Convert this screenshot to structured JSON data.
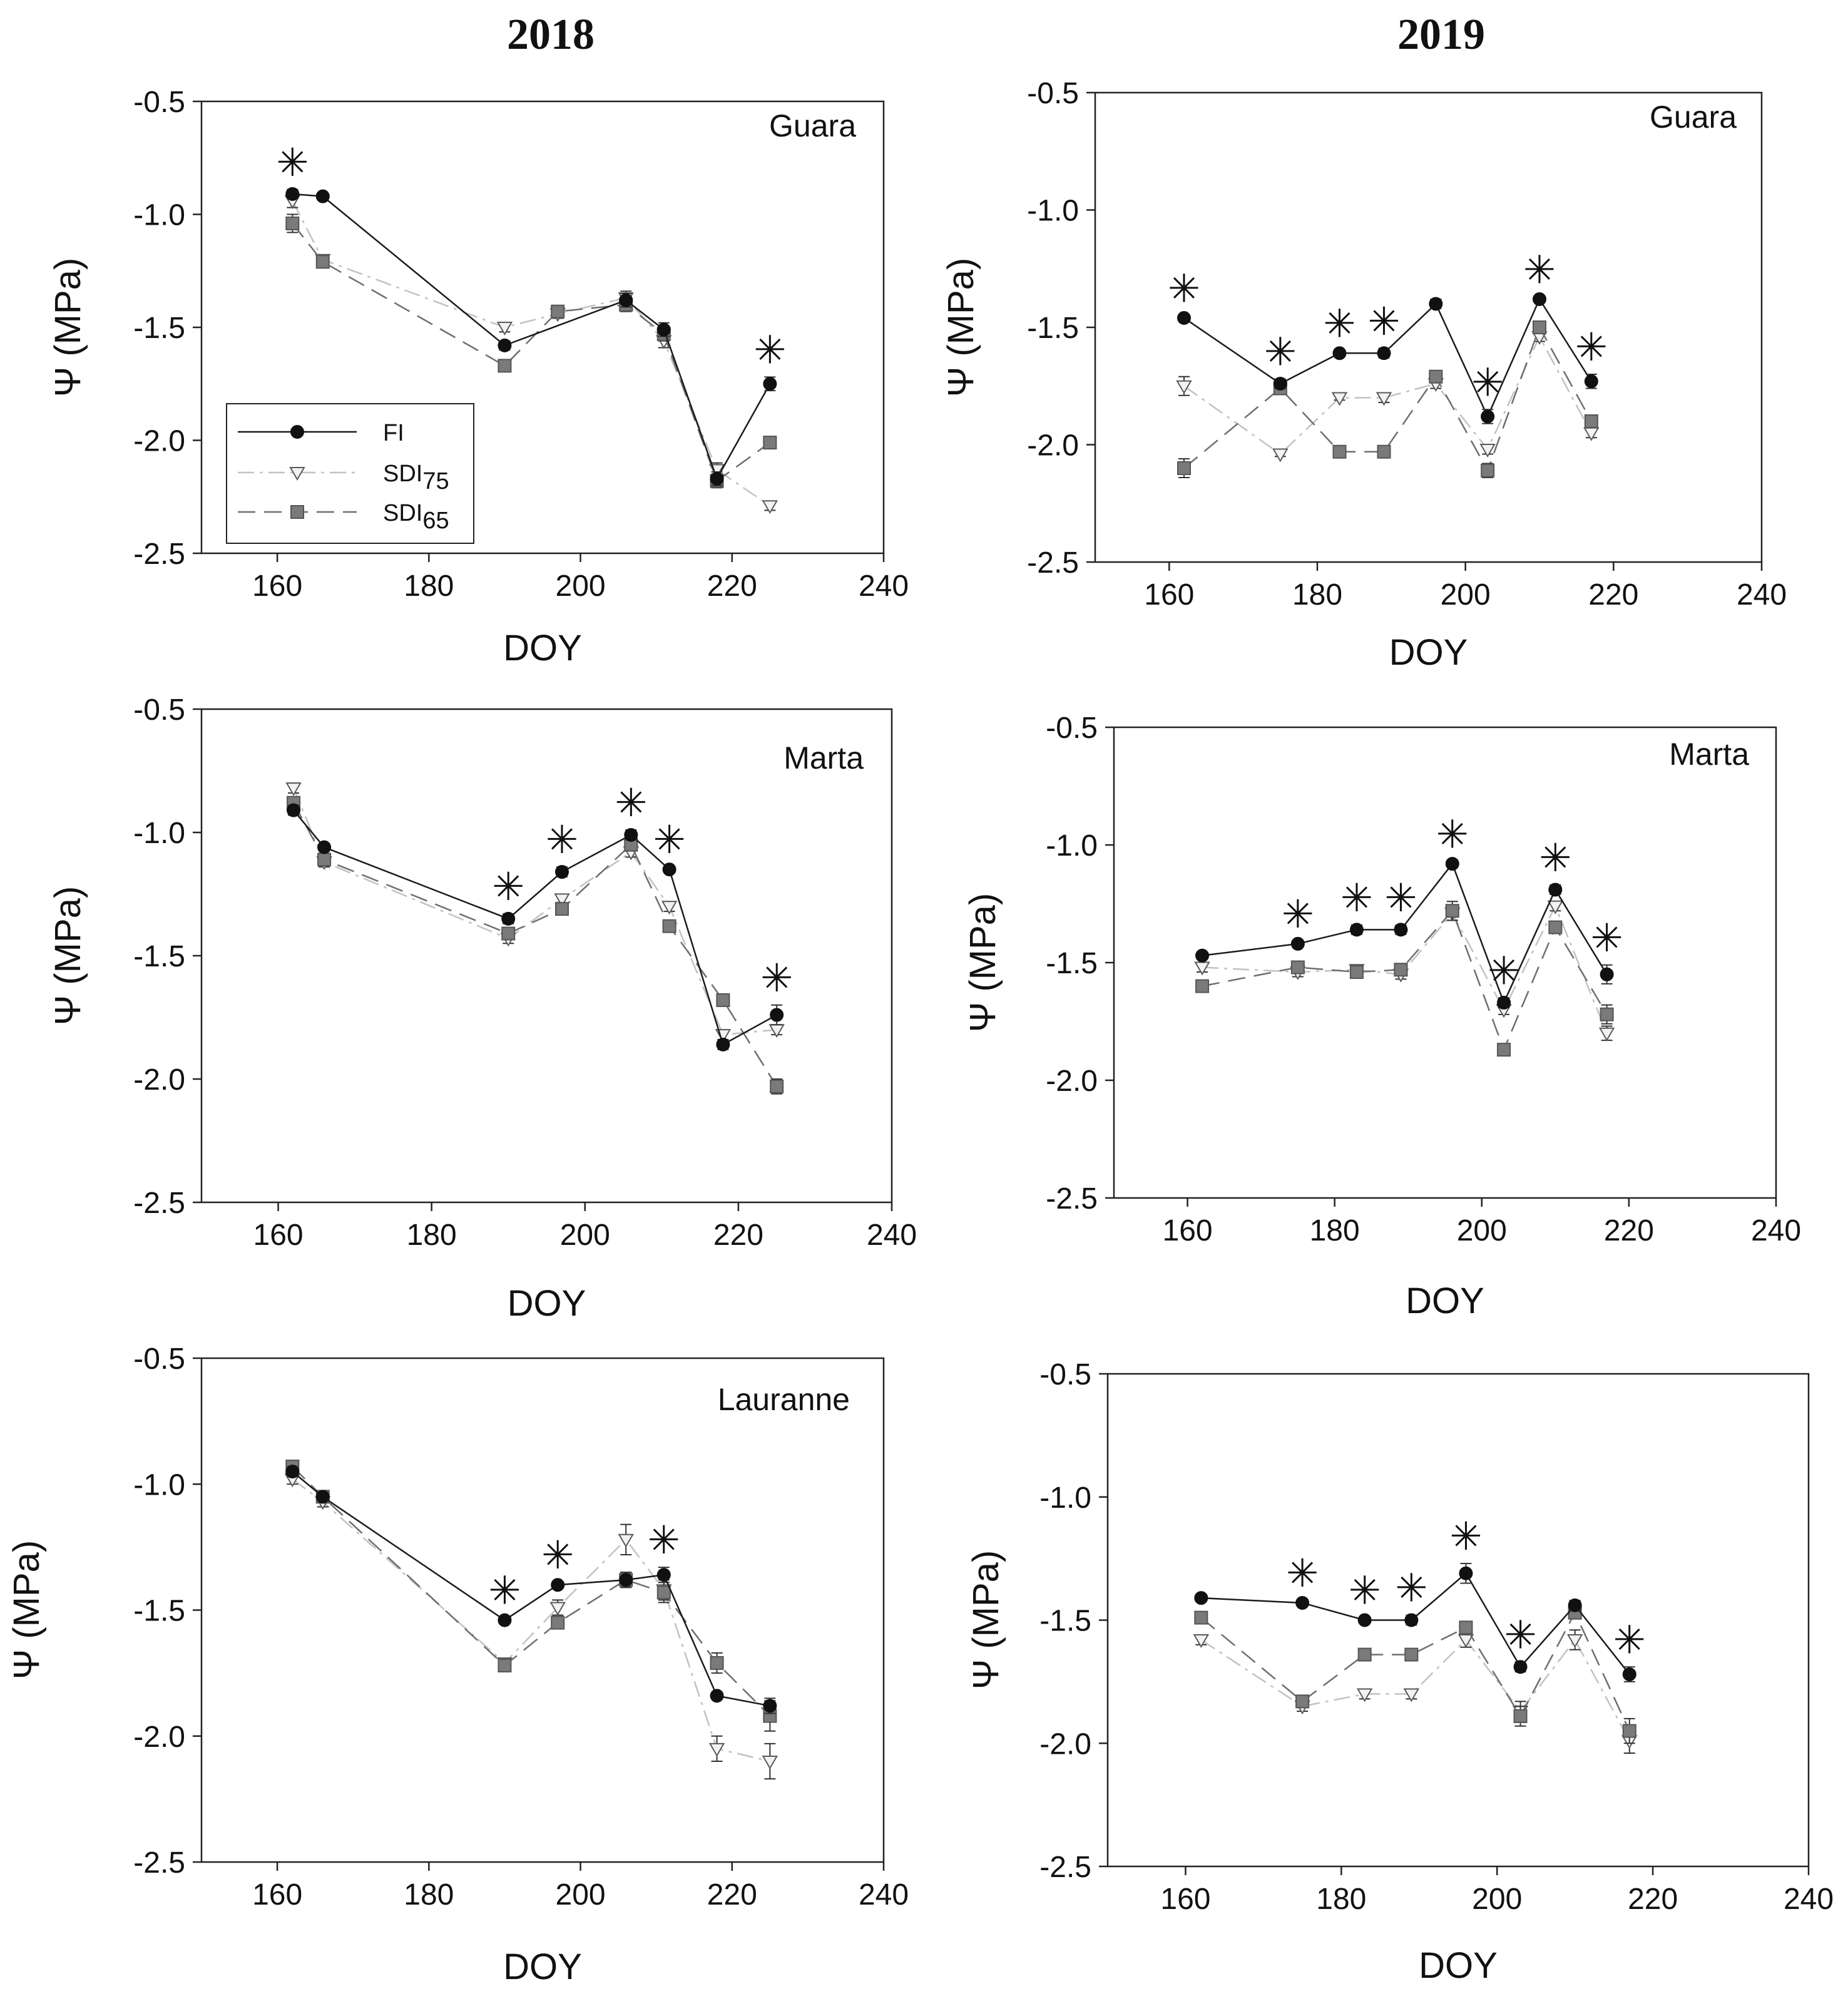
{
  "figure": {
    "col_titles": [
      "2018",
      "2019"
    ]
  },
  "legend": {
    "entries": [
      {
        "label": "FI",
        "series": "FI"
      },
      {
        "label": "SDI",
        "sub": "75",
        "series": "SDI75"
      },
      {
        "label": "SDI",
        "sub": "65",
        "series": "SDI65"
      }
    ]
  },
  "chart_data": [
    {
      "type": "line",
      "panel": "2018 Guara",
      "label": "Guara",
      "xlabel": "DOY",
      "ylabel": "Ψ (MPa)",
      "xlim": [
        150,
        240
      ],
      "ylim": [
        -2.5,
        -0.5
      ],
      "xticks": [
        "160",
        "180",
        "200",
        "220",
        "240"
      ],
      "yticks": [
        "-0.5",
        "-1.0",
        "-1.5",
        "-2.0",
        "-2.5"
      ],
      "series": [
        {
          "name": "FI",
          "x": [
            162,
            166,
            190,
            206,
            211,
            218,
            225
          ],
          "y": [
            -0.91,
            -0.92,
            -1.58,
            -1.38,
            -1.51,
            -2.17,
            -1.75
          ],
          "err": [
            0.02,
            0.01,
            0.02,
            0.03,
            0.03,
            0.03,
            0.03
          ]
        },
        {
          "name": "SDI75",
          "x": [
            162,
            166,
            190,
            197,
            206,
            211,
            218,
            225
          ],
          "y": [
            -0.94,
            -1.2,
            -1.5,
            -1.44,
            -1.37,
            -1.56,
            -2.13,
            -2.29
          ],
          "err": [
            0.03,
            0.01,
            0.02,
            0.02,
            0.03,
            0.03,
            0.03,
            0.02
          ]
        },
        {
          "name": "SDI65",
          "x": [
            162,
            166,
            190,
            197,
            206,
            211,
            218,
            225
          ],
          "y": [
            -1.04,
            -1.21,
            -1.67,
            -1.43,
            -1.4,
            -1.53,
            -2.18,
            -2.01
          ],
          "err": [
            0.04,
            0.01,
            0.02,
            0.02,
            0.03,
            0.03,
            0.03,
            0.01
          ]
        }
      ],
      "significance_doy": [
        162,
        225
      ]
    },
    {
      "type": "line",
      "panel": "2019 Guara",
      "label": "Guara",
      "xlabel": "DOY",
      "ylabel": "Ψ (MPa)",
      "xlim": [
        150,
        240
      ],
      "ylim": [
        -2.5,
        -0.5
      ],
      "xticks": [
        "160",
        "180",
        "200",
        "220",
        "240"
      ],
      "yticks": [
        "-0.5",
        "-1.0",
        "-1.5",
        "-2.0",
        "-2.5"
      ],
      "series": [
        {
          "name": "FI",
          "x": [
            162,
            175,
            183,
            189,
            196,
            203,
            210,
            217
          ],
          "y": [
            -1.46,
            -1.74,
            -1.61,
            -1.61,
            -1.4,
            -1.88,
            -1.38,
            -1.73
          ],
          "err": [
            0.01,
            0.02,
            0.01,
            0.02,
            0.02,
            0.03,
            0.01,
            0.03
          ]
        },
        {
          "name": "SDI75",
          "x": [
            162,
            175,
            183,
            189,
            196,
            203,
            210,
            217
          ],
          "y": [
            -1.75,
            -2.04,
            -1.8,
            -1.8,
            -1.74,
            -2.02,
            -1.54,
            -1.95
          ],
          "err": [
            0.04,
            0.01,
            0.01,
            0.02,
            0.02,
            0.02,
            0.02,
            0.02
          ]
        },
        {
          "name": "SDI65",
          "x": [
            162,
            175,
            183,
            189,
            196,
            203,
            210,
            217
          ],
          "y": [
            -2.1,
            -1.76,
            -2.03,
            -2.03,
            -1.71,
            -2.11,
            -1.5,
            -1.9
          ],
          "err": [
            0.04,
            0.01,
            0.01,
            0.01,
            0.02,
            0.03,
            0.02,
            0.02
          ]
        }
      ],
      "significance_doy": [
        162,
        175,
        183,
        189,
        203,
        210,
        217
      ]
    },
    {
      "type": "line",
      "panel": "2018 Marta",
      "label": "Marta",
      "xlabel": "DOY",
      "ylabel": "Ψ (MPa)",
      "xlim": [
        150,
        240
      ],
      "ylim": [
        -2.5,
        -0.5
      ],
      "xticks": [
        "160",
        "180",
        "200",
        "220",
        "240"
      ],
      "yticks": [
        "-0.5",
        "-1.0",
        "-1.5",
        "-2.0",
        "-2.5"
      ],
      "series": [
        {
          "name": "FI",
          "x": [
            162,
            166,
            190,
            197,
            206,
            211,
            218,
            225
          ],
          "y": [
            -0.91,
            -1.06,
            -1.35,
            -1.16,
            -1.01,
            -1.15,
            -1.86,
            -1.74
          ],
          "err": [
            0.02,
            0.01,
            0.02,
            0.02,
            0.02,
            0.01,
            0.02,
            0.04
          ]
        },
        {
          "name": "SDI75",
          "x": [
            162,
            166,
            190,
            197,
            206,
            211,
            218,
            225
          ],
          "y": [
            -0.82,
            -1.12,
            -1.43,
            -1.27,
            -1.08,
            -1.3,
            -1.82,
            -1.8
          ],
          "err": [
            0.02,
            0.02,
            0.02,
            0.02,
            0.02,
            0.02,
            0.02,
            0.02
          ]
        },
        {
          "name": "SDI65",
          "x": [
            162,
            166,
            190,
            197,
            206,
            211,
            218,
            225
          ],
          "y": [
            -0.88,
            -1.11,
            -1.41,
            -1.31,
            -1.05,
            -1.38,
            -1.68,
            -2.03
          ],
          "err": [
            0.02,
            0.02,
            0.02,
            0.02,
            0.02,
            0.01,
            0.02,
            0.03
          ]
        }
      ],
      "significance_doy": [
        190,
        197,
        206,
        211,
        225
      ]
    },
    {
      "type": "line",
      "panel": "2019 Marta",
      "label": "Marta",
      "xlabel": "DOY",
      "ylabel": "Ψ (MPa)",
      "xlim": [
        150,
        240
      ],
      "ylim": [
        -2.5,
        -0.5
      ],
      "xticks": [
        "160",
        "180",
        "200",
        "220",
        "240"
      ],
      "yticks": [
        "-0.5",
        "-1.0",
        "-1.5",
        "-2.0",
        "-2.5"
      ],
      "series": [
        {
          "name": "FI",
          "x": [
            162,
            175,
            183,
            189,
            196,
            203,
            210,
            217
          ],
          "y": [
            -1.47,
            -1.42,
            -1.36,
            -1.36,
            -1.08,
            -1.67,
            -1.19,
            -1.55
          ],
          "err": [
            0.01,
            0.01,
            0.02,
            0.02,
            0.01,
            0.02,
            0.02,
            0.04
          ]
        },
        {
          "name": "SDI75",
          "x": [
            162,
            175,
            183,
            189,
            196,
            203,
            210,
            217
          ],
          "y": [
            -1.52,
            -1.54,
            -1.53,
            -1.55,
            -1.29,
            -1.7,
            -1.26,
            -1.8
          ],
          "err": [
            0.02,
            0.02,
            0.02,
            0.02,
            0.03,
            0.02,
            0.02,
            0.03
          ]
        },
        {
          "name": "SDI65",
          "x": [
            162,
            175,
            183,
            189,
            196,
            203,
            210,
            217
          ],
          "y": [
            -1.6,
            -1.52,
            -1.54,
            -1.53,
            -1.28,
            -1.87,
            -1.35,
            -1.72
          ],
          "err": [
            0.01,
            0.02,
            0.01,
            0.02,
            0.04,
            0.01,
            0.01,
            0.04
          ]
        }
      ],
      "significance_doy": [
        175,
        183,
        189,
        196,
        203,
        210,
        217
      ]
    },
    {
      "type": "line",
      "panel": "2018 Lauranne",
      "label": "Lauranne",
      "xlabel": "DOY",
      "ylabel": "Ψ (MPa)",
      "xlim": [
        150,
        240
      ],
      "ylim": [
        -2.5,
        -0.5
      ],
      "xticks": [
        "160",
        "180",
        "200",
        "220",
        "240"
      ],
      "yticks": [
        "-0.5",
        "-1.0",
        "-1.5",
        "-2.0",
        "-2.5"
      ],
      "series": [
        {
          "name": "FI",
          "x": [
            162,
            166,
            190,
            197,
            206,
            211,
            218,
            225
          ],
          "y": [
            -0.95,
            -1.05,
            -1.54,
            -1.4,
            -1.38,
            -1.36,
            -1.84,
            -1.88
          ],
          "err": [
            0.02,
            0.01,
            0.01,
            0.01,
            0.03,
            0.03,
            0.01,
            0.03
          ]
        },
        {
          "name": "SDI75",
          "x": [
            162,
            166,
            190,
            197,
            206,
            211,
            218,
            225
          ],
          "y": [
            -0.98,
            -1.07,
            -1.71,
            -1.49,
            -1.22,
            -1.42,
            -2.05,
            -2.1
          ],
          "err": [
            0.02,
            0.02,
            0.02,
            0.03,
            0.06,
            0.04,
            0.05,
            0.07
          ]
        },
        {
          "name": "SDI65",
          "x": [
            162,
            166,
            190,
            197,
            206,
            211,
            218,
            225
          ],
          "y": [
            -0.93,
            -1.05,
            -1.72,
            -1.55,
            -1.38,
            -1.43,
            -1.71,
            -1.92
          ],
          "err": [
            0.02,
            0.01,
            0.02,
            0.01,
            0.03,
            0.04,
            0.04,
            0.06
          ]
        }
      ],
      "significance_doy": [
        190,
        197,
        211
      ]
    },
    {
      "type": "line",
      "panel": "2019 Lauranne",
      "label": "",
      "xlabel": "DOY",
      "ylabel": "Ψ (MPa)",
      "xlim": [
        150,
        240
      ],
      "ylim": [
        -2.5,
        -0.5
      ],
      "xticks": [
        "160",
        "180",
        "200",
        "220",
        "240"
      ],
      "yticks": [
        "-0.5",
        "-1.0",
        "-1.5",
        "-2.0",
        "-2.5"
      ],
      "series": [
        {
          "name": "FI",
          "x": [
            162,
            175,
            183,
            189,
            196,
            203,
            210,
            217
          ],
          "y": [
            -1.41,
            -1.43,
            -1.5,
            -1.5,
            -1.31,
            -1.69,
            -1.44,
            -1.72
          ],
          "err": [
            0.01,
            0.01,
            0.01,
            0.02,
            0.04,
            0.02,
            0.02,
            0.03
          ]
        },
        {
          "name": "SDI75",
          "x": [
            162,
            175,
            183,
            189,
            196,
            203,
            210,
            217
          ],
          "y": [
            -1.58,
            -1.85,
            -1.8,
            -1.8,
            -1.58,
            -1.87,
            -1.58,
            -1.99
          ],
          "err": [
            0.02,
            0.02,
            0.02,
            0.02,
            0.03,
            0.04,
            0.04,
            0.05
          ]
        },
        {
          "name": "SDI65",
          "x": [
            162,
            175,
            183,
            189,
            196,
            203,
            210,
            217
          ],
          "y": [
            -1.49,
            -1.83,
            -1.64,
            -1.64,
            -1.53,
            -1.89,
            -1.47,
            -1.95
          ],
          "err": [
            0.02,
            0.02,
            0.01,
            0.01,
            0.02,
            0.04,
            0.02,
            0.05
          ]
        }
      ],
      "significance_doy": [
        175,
        183,
        189,
        196,
        203,
        217
      ]
    }
  ]
}
